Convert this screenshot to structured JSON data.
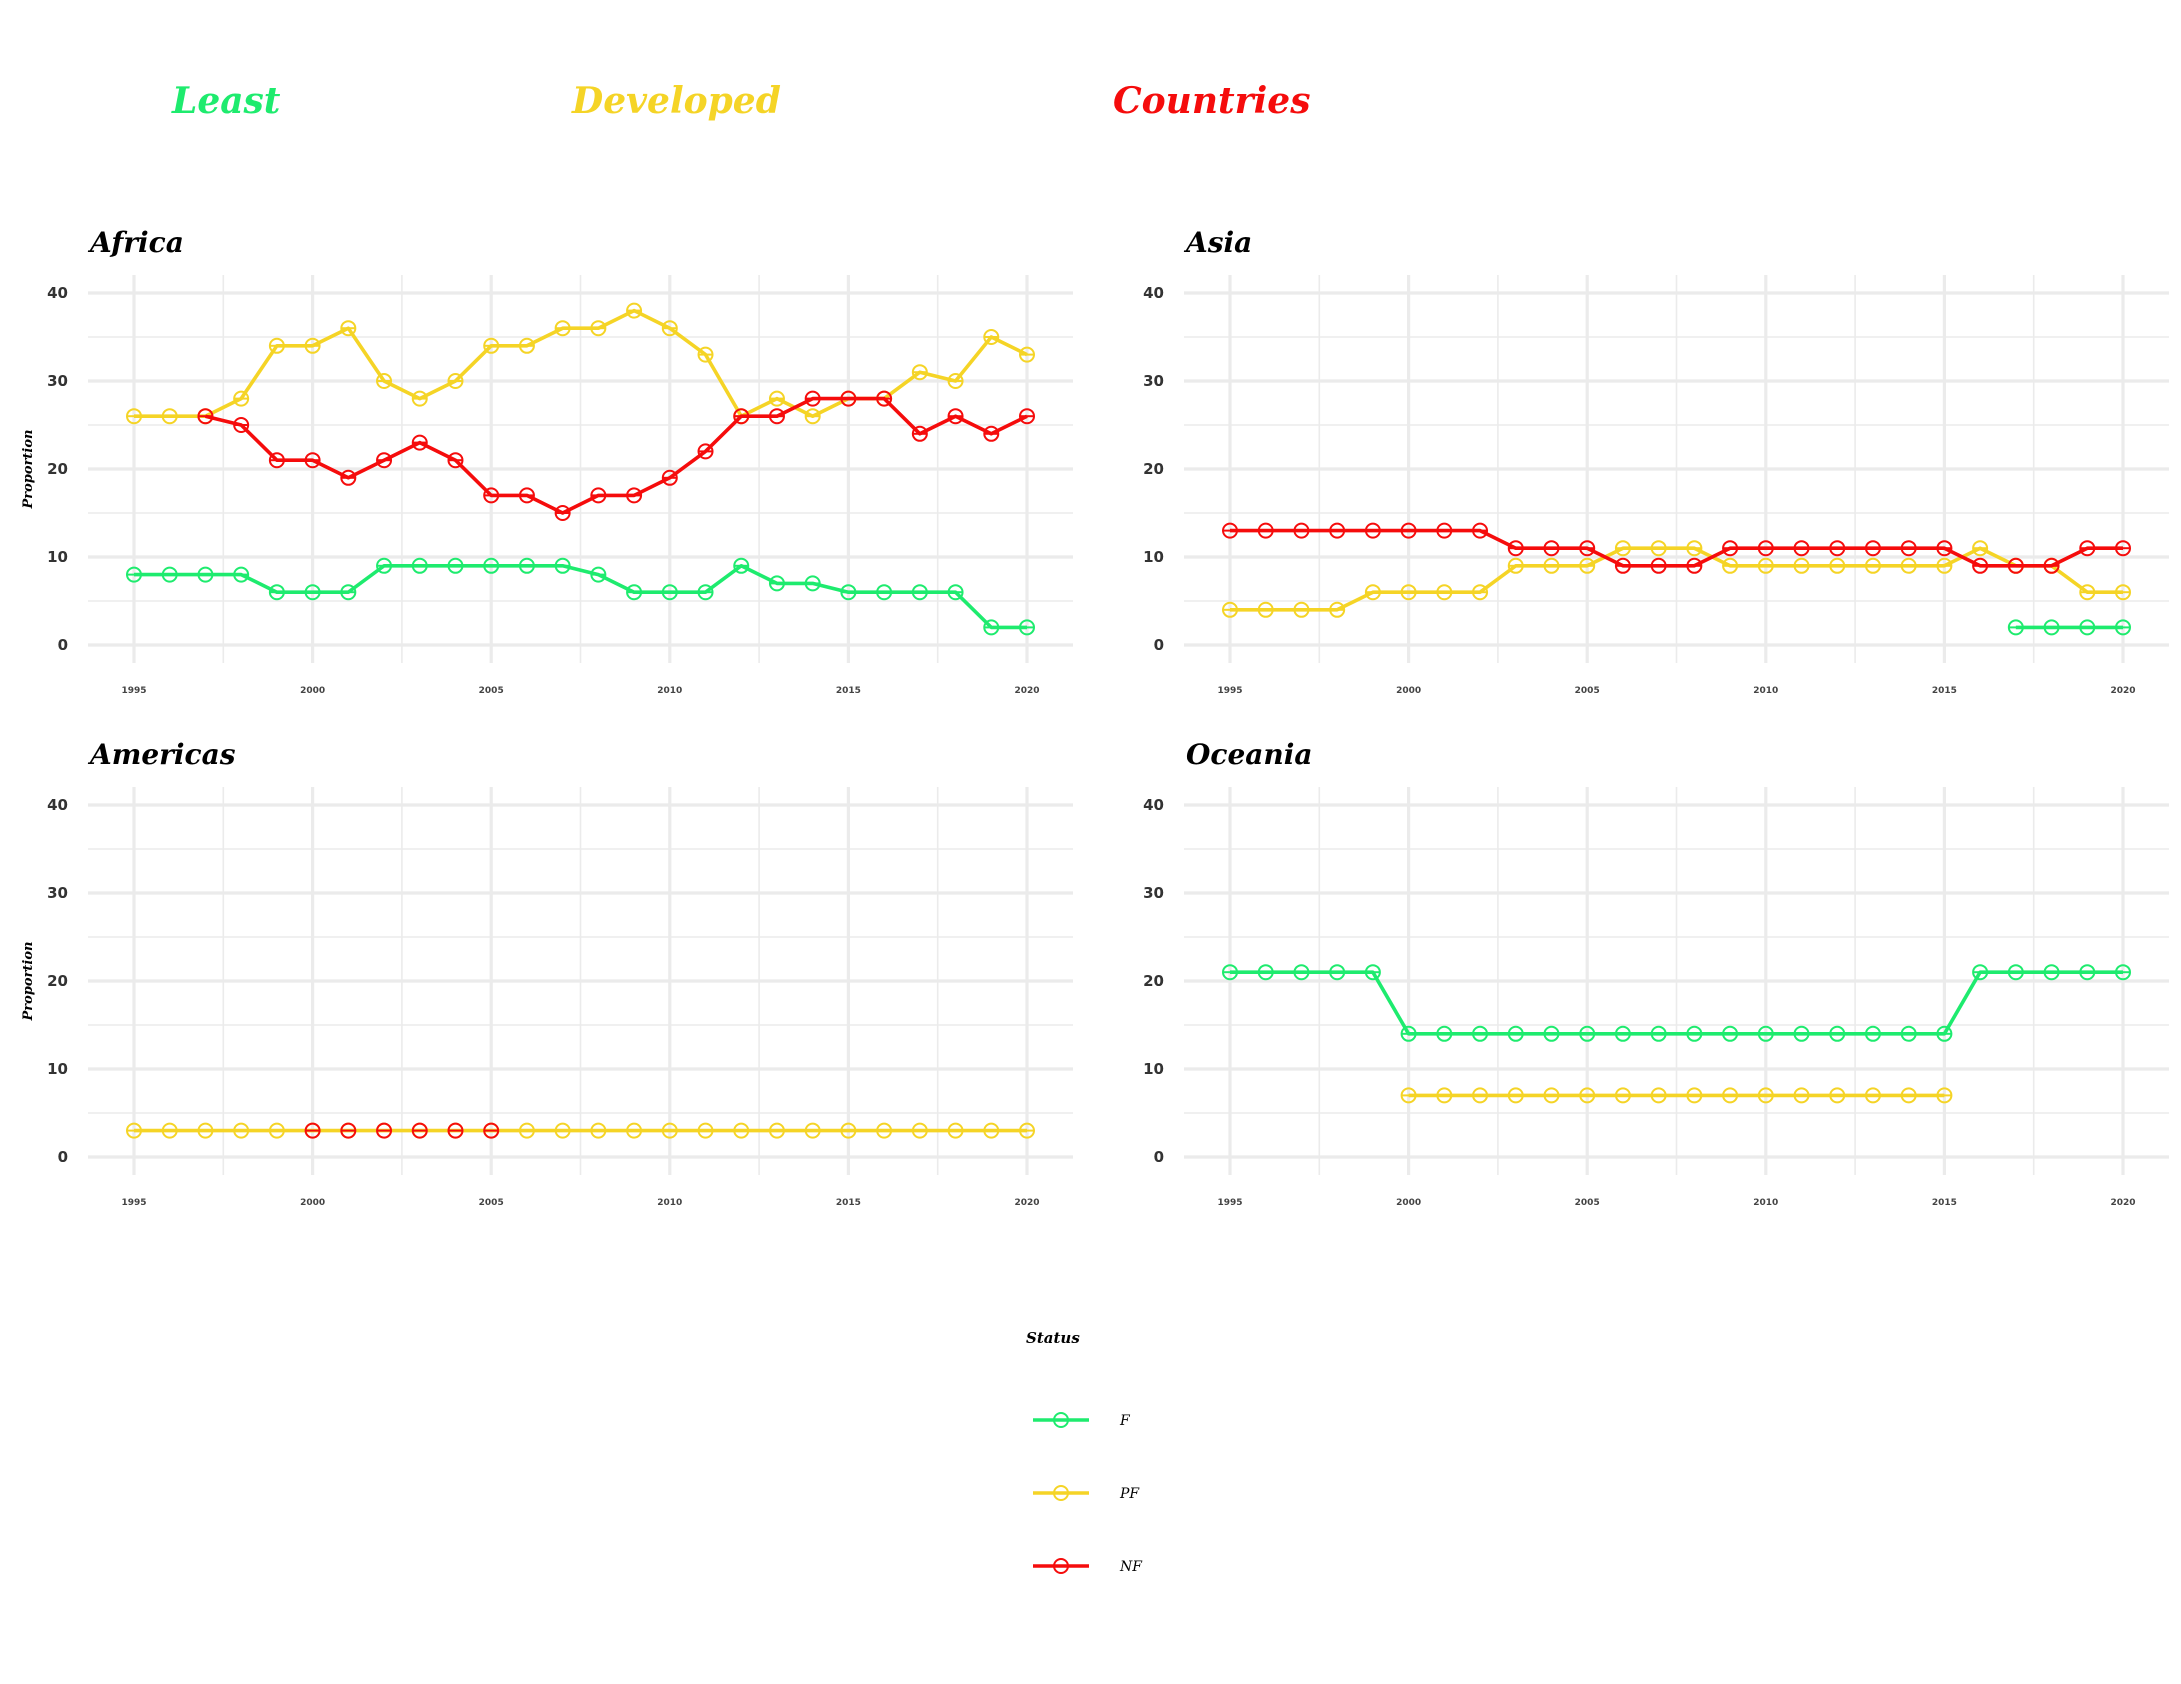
{
  "title_words": [
    {
      "text": "Least",
      "color": "#1EEB6E"
    },
    {
      "text": "Developed",
      "color": "#F5D426"
    },
    {
      "text": "Countries",
      "color": "#F50C0C"
    }
  ],
  "status_colors": {
    "F": "#1EEB6E",
    "PF": "#F5D426",
    "NF": "#F50C0C"
  },
  "chart_data": [
    {
      "type": "line",
      "title": "Africa",
      "ylabel": "Proportion",
      "xlim": [
        1995,
        2020
      ],
      "ylim": [
        0,
        40
      ],
      "x_ticks": [
        1995,
        2000,
        2005,
        2010,
        2015,
        2020
      ],
      "y_ticks": [
        0,
        10,
        20,
        30,
        40
      ],
      "series": [
        {
          "name": "F",
          "x": [
            1995,
            1996,
            1997,
            1998,
            1999,
            2000,
            2001,
            2002,
            2003,
            2004,
            2005,
            2006,
            2007,
            2008,
            2009,
            2010,
            2011,
            2012,
            2013,
            2014,
            2015,
            2016,
            2017,
            2018,
            2019,
            2020
          ],
          "values": [
            8,
            8,
            8,
            8,
            6,
            6,
            6,
            9,
            9,
            9,
            9,
            9,
            9,
            8,
            6,
            6,
            6,
            9,
            7,
            7,
            6,
            6,
            6,
            6,
            2,
            2
          ]
        },
        {
          "name": "PF",
          "x": [
            1995,
            1996,
            1997,
            1998,
            1999,
            2000,
            2001,
            2002,
            2003,
            2004,
            2005,
            2006,
            2007,
            2008,
            2009,
            2010,
            2011,
            2012,
            2013,
            2014,
            2015,
            2016,
            2017,
            2018,
            2019,
            2020
          ],
          "values": [
            26,
            26,
            26,
            28,
            34,
            34,
            36,
            30,
            28,
            30,
            34,
            34,
            36,
            36,
            38,
            36,
            33,
            26,
            28,
            26,
            28,
            28,
            31,
            30,
            35,
            33
          ]
        },
        {
          "name": "NF",
          "x": [
            1997,
            1998,
            1999,
            2000,
            2001,
            2002,
            2003,
            2004,
            2005,
            2006,
            2007,
            2008,
            2009,
            2010,
            2011,
            2012,
            2013,
            2014,
            2015,
            2016,
            2017,
            2018,
            2019,
            2020
          ],
          "values": [
            26,
            25,
            21,
            21,
            19,
            21,
            23,
            21,
            17,
            17,
            15,
            17,
            17,
            19,
            22,
            26,
            26,
            28,
            28,
            28,
            24,
            26,
            24,
            26
          ]
        }
      ]
    },
    {
      "type": "line",
      "title": "Asia",
      "ylabel": "",
      "xlim": [
        1995,
        2020
      ],
      "ylim": [
        0,
        40
      ],
      "x_ticks": [
        1995,
        2000,
        2005,
        2010,
        2015,
        2020
      ],
      "y_ticks": [
        0,
        10,
        20,
        30,
        40
      ],
      "series": [
        {
          "name": "F",
          "x": [
            2017,
            2018,
            2019,
            2020
          ],
          "values": [
            2,
            2,
            2,
            2
          ]
        },
        {
          "name": "PF",
          "x": [
            1995,
            1996,
            1997,
            1998,
            1999,
            2000,
            2001,
            2002,
            2003,
            2004,
            2005,
            2006,
            2007,
            2008,
            2009,
            2010,
            2011,
            2012,
            2013,
            2014,
            2015,
            2016,
            2017,
            2018,
            2019,
            2020
          ],
          "values": [
            4,
            4,
            4,
            4,
            6,
            6,
            6,
            6,
            9,
            9,
            9,
            11,
            11,
            11,
            9,
            9,
            9,
            9,
            9,
            9,
            9,
            11,
            9,
            9,
            6,
            6
          ]
        },
        {
          "name": "NF",
          "x": [
            1995,
            1996,
            1997,
            1998,
            1999,
            2000,
            2001,
            2002,
            2003,
            2004,
            2005,
            2006,
            2007,
            2008,
            2009,
            2010,
            2011,
            2012,
            2013,
            2014,
            2015,
            2016,
            2017,
            2018,
            2019,
            2020
          ],
          "values": [
            13,
            13,
            13,
            13,
            13,
            13,
            13,
            13,
            11,
            11,
            11,
            9,
            9,
            9,
            11,
            11,
            11,
            11,
            11,
            11,
            11,
            9,
            9,
            9,
            11,
            11
          ]
        }
      ]
    },
    {
      "type": "line",
      "title": "Americas",
      "ylabel": "Proportion",
      "xlim": [
        1995,
        2020
      ],
      "ylim": [
        0,
        40
      ],
      "x_ticks": [
        1995,
        2000,
        2005,
        2010,
        2015,
        2020
      ],
      "y_ticks": [
        0,
        10,
        20,
        30,
        40
      ],
      "series": [
        {
          "name": "F",
          "x": [],
          "values": []
        },
        {
          "name": "PF",
          "x": [
            1995,
            1996,
            1997,
            1998,
            1999,
            2000,
            2001,
            2002,
            2003,
            2004,
            2005,
            2006,
            2007,
            2008,
            2009,
            2010,
            2011,
            2012,
            2013,
            2014,
            2015,
            2016,
            2017,
            2018,
            2019,
            2020
          ],
          "values": [
            3,
            3,
            3,
            3,
            3,
            3,
            3,
            3,
            3,
            3,
            3,
            3,
            3,
            3,
            3,
            3,
            3,
            3,
            3,
            3,
            3,
            3,
            3,
            3,
            3,
            3
          ]
        },
        {
          "name": "NF",
          "x": [
            2000,
            2001,
            2002,
            2003,
            2004,
            2005
          ],
          "values": [
            3,
            3,
            3,
            3,
            3,
            3
          ],
          "points_only": true
        }
      ]
    },
    {
      "type": "line",
      "title": "Oceania",
      "ylabel": "",
      "xlim": [
        1995,
        2020
      ],
      "ylim": [
        0,
        40
      ],
      "x_ticks": [
        1995,
        2000,
        2005,
        2010,
        2015,
        2020
      ],
      "y_ticks": [
        0,
        10,
        20,
        30,
        40
      ],
      "series": [
        {
          "name": "F",
          "x": [
            1995,
            1996,
            1997,
            1998,
            1999,
            2000,
            2001,
            2002,
            2003,
            2004,
            2005,
            2006,
            2007,
            2008,
            2009,
            2010,
            2011,
            2012,
            2013,
            2014,
            2015,
            2016,
            2017,
            2018,
            2019,
            2020
          ],
          "values": [
            21,
            21,
            21,
            21,
            21,
            14,
            14,
            14,
            14,
            14,
            14,
            14,
            14,
            14,
            14,
            14,
            14,
            14,
            14,
            14,
            14,
            21,
            21,
            21,
            21,
            21
          ]
        },
        {
          "name": "PF",
          "x": [
            2000,
            2001,
            2002,
            2003,
            2004,
            2005,
            2006,
            2007,
            2008,
            2009,
            2010,
            2011,
            2012,
            2013,
            2014,
            2015
          ],
          "values": [
            7,
            7,
            7,
            7,
            7,
            7,
            7,
            7,
            7,
            7,
            7,
            7,
            7,
            7,
            7,
            7
          ]
        },
        {
          "name": "NF",
          "x": [],
          "values": []
        }
      ]
    }
  ],
  "legend": {
    "title": "Status",
    "items": [
      {
        "key": "F",
        "label": "F"
      },
      {
        "key": "PF",
        "label": "PF"
      },
      {
        "key": "NF",
        "label": "NF"
      }
    ]
  }
}
